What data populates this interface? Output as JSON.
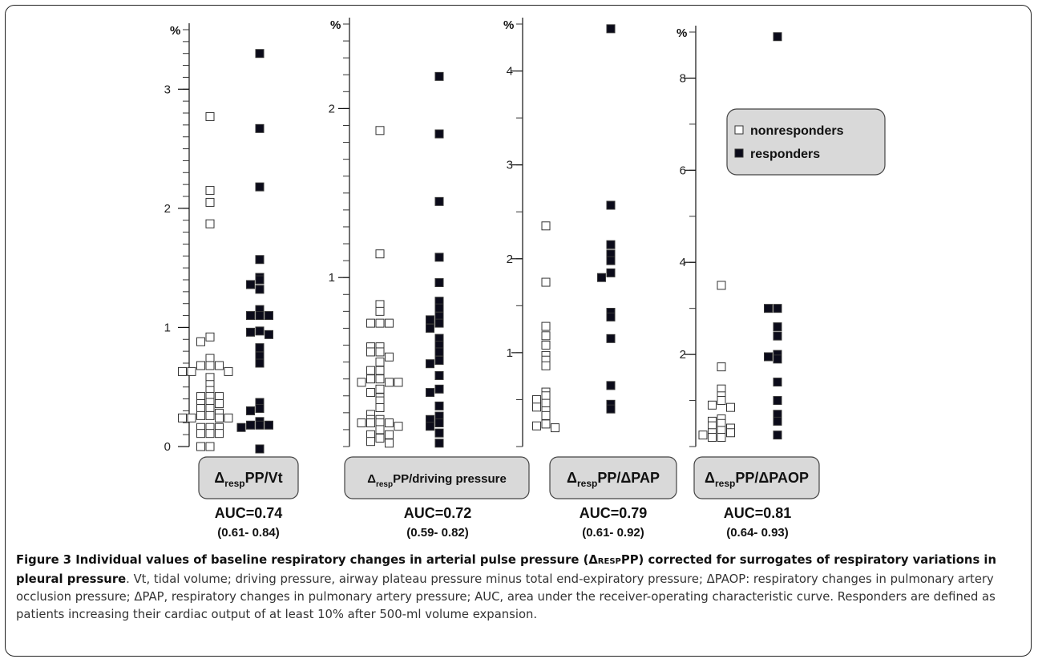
{
  "chart_data": [
    {
      "type": "scatter",
      "name": "ΔrespPP/Vt",
      "label_main": "Δ",
      "label_sub": "resp",
      "label_rest": "PP/Vt",
      "unit": "%",
      "ylim": [
        0,
        3.5
      ],
      "ticks": [
        "0",
        "1",
        "2",
        "3"
      ],
      "tick_values": [
        0,
        1,
        2,
        3
      ],
      "minor_step": 0.1,
      "auc": "AUC=0.74",
      "ci": "(0.61- 0.84)",
      "nonresponders": [
        2.77,
        2.15,
        2.05,
        1.87,
        0.92,
        0.88,
        0.74,
        0.68,
        0.68,
        0.68,
        0.63,
        0.63,
        0.63,
        0.58,
        0.52,
        0.47,
        0.42,
        0.42,
        0.42,
        0.37,
        0.36,
        0.36,
        0.32,
        0.32,
        0.28,
        0.26,
        0.26,
        0.24,
        0.24,
        0.24,
        0.24,
        0.16,
        0.16,
        0.16,
        0.11,
        0.11,
        0.11,
        0.0,
        0.0
      ],
      "responders": [
        3.3,
        2.67,
        2.18,
        1.57,
        1.42,
        1.4,
        1.36,
        1.32,
        1.15,
        1.1,
        1.1,
        1.1,
        0.97,
        0.96,
        0.94,
        0.83,
        0.76,
        0.7,
        0.37,
        0.32,
        0.3,
        0.21,
        0.18,
        0.18,
        0.18,
        0.16,
        -0.02
      ]
    },
    {
      "type": "scatter",
      "name": "ΔrespPP/driving pressure",
      "label_main": "Δ",
      "label_sub": "resp",
      "label_rest": "PP/driving pressure",
      "unit": "%",
      "ylim": [
        0,
        2.5
      ],
      "ticks": [
        "1",
        "2"
      ],
      "tick_values": [
        1,
        2
      ],
      "minor_step": 0.1,
      "auc": "AUC=0.72",
      "ci": "(0.59- 0.82)",
      "nonresponders": [
        1.87,
        1.14,
        0.84,
        0.8,
        0.73,
        0.73,
        0.73,
        0.59,
        0.59,
        0.56,
        0.56,
        0.53,
        0.5,
        0.45,
        0.45,
        0.4,
        0.4,
        0.38,
        0.38,
        0.38,
        0.34,
        0.32,
        0.29,
        0.27,
        0.23,
        0.19,
        0.16,
        0.16,
        0.14,
        0.14,
        0.14,
        0.14,
        0.12,
        0.1,
        0.07,
        0.07,
        0.05,
        0.03,
        0.02
      ],
      "responders": [
        2.19,
        1.85,
        1.45,
        1.12,
        0.97,
        0.86,
        0.82,
        0.77,
        0.75,
        0.73,
        0.7,
        0.64,
        0.6,
        0.56,
        0.51,
        0.49,
        0.42,
        0.34,
        0.32,
        0.24,
        0.18,
        0.16,
        0.14,
        0.12,
        0.08,
        0.02
      ]
    },
    {
      "type": "scatter",
      "name": "ΔrespPP/ΔPAP",
      "label_main": "Δ",
      "label_sub": "resp",
      "label_rest": "PP/ΔPAP",
      "unit": "%",
      "ylim": [
        0,
        4.5
      ],
      "ticks": [
        "1",
        "2",
        "3",
        "4"
      ],
      "tick_values": [
        1,
        2,
        3,
        4
      ],
      "minor_step": 0.5,
      "auc": "AUC=0.79",
      "ci": "(0.61- 0.92)",
      "nonresponders": [
        2.35,
        1.75,
        1.28,
        1.18,
        1.08,
        0.97,
        0.92,
        0.86,
        0.58,
        0.54,
        0.5,
        0.46,
        0.42,
        0.38,
        0.33,
        0.24,
        0.22,
        0.2
      ],
      "responders": [
        4.45,
        2.57,
        2.15,
        2.05,
        1.98,
        1.85,
        1.8,
        1.43,
        1.38,
        1.15,
        0.65,
        0.45,
        0.4
      ]
    },
    {
      "type": "scatter",
      "name": "ΔrespPP/ΔPAOP",
      "label_main": "Δ",
      "label_sub": "resp",
      "label_rest": "PP/ΔPAOP",
      "unit": "%",
      "ylim": [
        0,
        9
      ],
      "ticks": [
        "2",
        "4",
        "6",
        "8"
      ],
      "tick_values": [
        2,
        4,
        6,
        8
      ],
      "minor_step": 1,
      "auc": "AUC=0.81",
      "ci": "(0.64- 0.93)",
      "nonresponders": [
        3.5,
        1.73,
        1.25,
        1.1,
        1.0,
        0.9,
        0.85,
        0.6,
        0.55,
        0.5,
        0.45,
        0.4,
        0.35,
        0.3,
        0.3,
        0.25,
        0.2,
        0.2
      ],
      "responders": [
        8.9,
        3.0,
        3.0,
        2.6,
        2.4,
        2.0,
        1.95,
        1.9,
        1.4,
        1.0,
        0.7,
        0.55,
        0.25
      ]
    }
  ],
  "legend": {
    "nonresponders": "nonresponders",
    "responders": "responders"
  },
  "caption": {
    "lead": "Figure 3 Individual values of baseline respiratory changes in arterial pulse pressure (Δ",
    "lead_sub": "RESP",
    "lead_end": "PP) corrected for surrogates of respiratory variations in pleural pressure",
    "body": ". Vt, tidal volume; driving pressure, airway plateau pressure minus total end-expiratory pressure; ΔPAOP: respiratory changes in pulmonary artery occlusion pressure; ΔPAP, respiratory changes in pulmonary artery pressure; AUC, area under the receiver-operating characteristic curve. Responders are defined as patients increasing their cardiac output of at least 10% after 500-ml volume expansion."
  },
  "colors": {
    "nonresponder_fill": "#ffffff",
    "responder_fill": "#0b0b1a",
    "label_box": "#d9d9d9"
  }
}
